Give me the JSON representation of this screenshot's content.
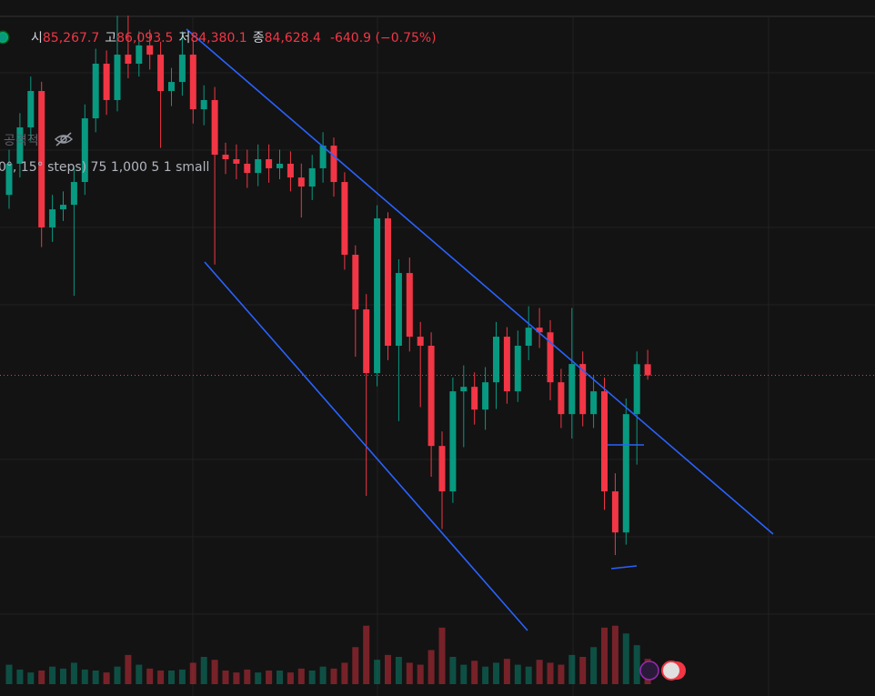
{
  "chart_data": {
    "type": "candlestick",
    "header": {
      "open_label": "시",
      "open": "85,267.7",
      "high_label": "고",
      "high": "86,093.5",
      "low_label": "저",
      "low": "84,380.1",
      "close_label": "종",
      "close": "84,628.4",
      "change": "-640.9 (−0.75%)"
    },
    "indicator_name": "공격적",
    "indicator_settings": "0°, 15° steps) 75 1,000 5 1 small",
    "ylim": [
      66200,
      106200
    ],
    "vlim": [
      0,
      70
    ],
    "up_color": "#089981",
    "down_color": "#f23645",
    "open": [
      95000,
      96790,
      98880,
      100970,
      93130,
      94170,
      94430,
      95740,
      99400,
      102540,
      100450,
      103060,
      102540,
      103590,
      103060,
      100970,
      101490,
      103060,
      99920,
      100450,
      97310,
      97050,
      96790,
      96260,
      97050,
      96530,
      96790,
      96000,
      95480,
      96530,
      97830,
      95740,
      91560,
      88420,
      84760,
      93650,
      86330,
      90510,
      86850,
      86330,
      80570,
      77960,
      83710,
      83970,
      82660,
      84230,
      86850,
      83710,
      86330,
      87370,
      87100,
      84230,
      82400,
      85280,
      82400,
      83710,
      77960,
      75600,
      82400,
      85267.7
    ],
    "high": [
      97600,
      99700,
      101800,
      101500,
      95000,
      95200,
      96600,
      100200,
      103400,
      103300,
      105300,
      105300,
      104400,
      104500,
      103800,
      102300,
      104400,
      103900,
      101300,
      101200,
      98000,
      97900,
      97600,
      97900,
      97900,
      97600,
      97500,
      96800,
      97300,
      98600,
      98300,
      96300,
      92100,
      89300,
      94400,
      94000,
      91300,
      91400,
      87700,
      87100,
      81400,
      84500,
      85200,
      84800,
      85100,
      87700,
      87400,
      87200,
      88600,
      88500,
      87800,
      85000,
      88500,
      86000,
      84600,
      84500,
      79000,
      83300,
      86000,
      86093.5
    ],
    "low": [
      94200,
      96000,
      98100,
      92000,
      92300,
      93500,
      89200,
      95000,
      98600,
      99600,
      99800,
      101700,
      101800,
      102200,
      97700,
      100100,
      100700,
      99100,
      99000,
      91000,
      96200,
      95900,
      95400,
      95500,
      95700,
      95900,
      95200,
      93700,
      94700,
      95700,
      94900,
      90700,
      85700,
      77700,
      84000,
      85500,
      82000,
      86000,
      82800,
      78800,
      75800,
      77300,
      80500,
      81800,
      81500,
      82700,
      83000,
      83100,
      85500,
      86200,
      83200,
      81600,
      81000,
      81700,
      81600,
      76900,
      74300,
      74900,
      79500,
      84380.1
    ],
    "close": [
      96790,
      98880,
      100970,
      93130,
      94170,
      94430,
      95740,
      99400,
      102540,
      100450,
      103060,
      102540,
      103590,
      103060,
      100970,
      101490,
      103060,
      99920,
      100450,
      97310,
      97050,
      96790,
      96260,
      97050,
      96530,
      96790,
      96000,
      95480,
      96530,
      97830,
      95740,
      91560,
      88420,
      84760,
      93650,
      86330,
      90510,
      86850,
      86330,
      80570,
      77960,
      83710,
      83970,
      82660,
      84230,
      86850,
      83710,
      86330,
      87370,
      87100,
      84230,
      82400,
      85280,
      82400,
      83710,
      77960,
      75600,
      82400,
      85270,
      84628.4
    ],
    "volume": [
      20,
      15,
      12,
      14,
      18,
      16,
      22,
      15,
      14,
      12,
      18,
      30,
      20,
      16,
      14,
      14,
      15,
      22,
      28,
      25,
      14,
      12,
      15,
      12,
      14,
      14,
      12,
      16,
      14,
      18,
      16,
      22,
      38,
      60,
      25,
      30,
      28,
      22,
      20,
      35,
      58,
      28,
      20,
      24,
      18,
      22,
      26,
      20,
      18,
      25,
      22,
      20,
      30,
      28,
      38,
      58,
      60,
      52,
      40,
      26
    ]
  }
}
